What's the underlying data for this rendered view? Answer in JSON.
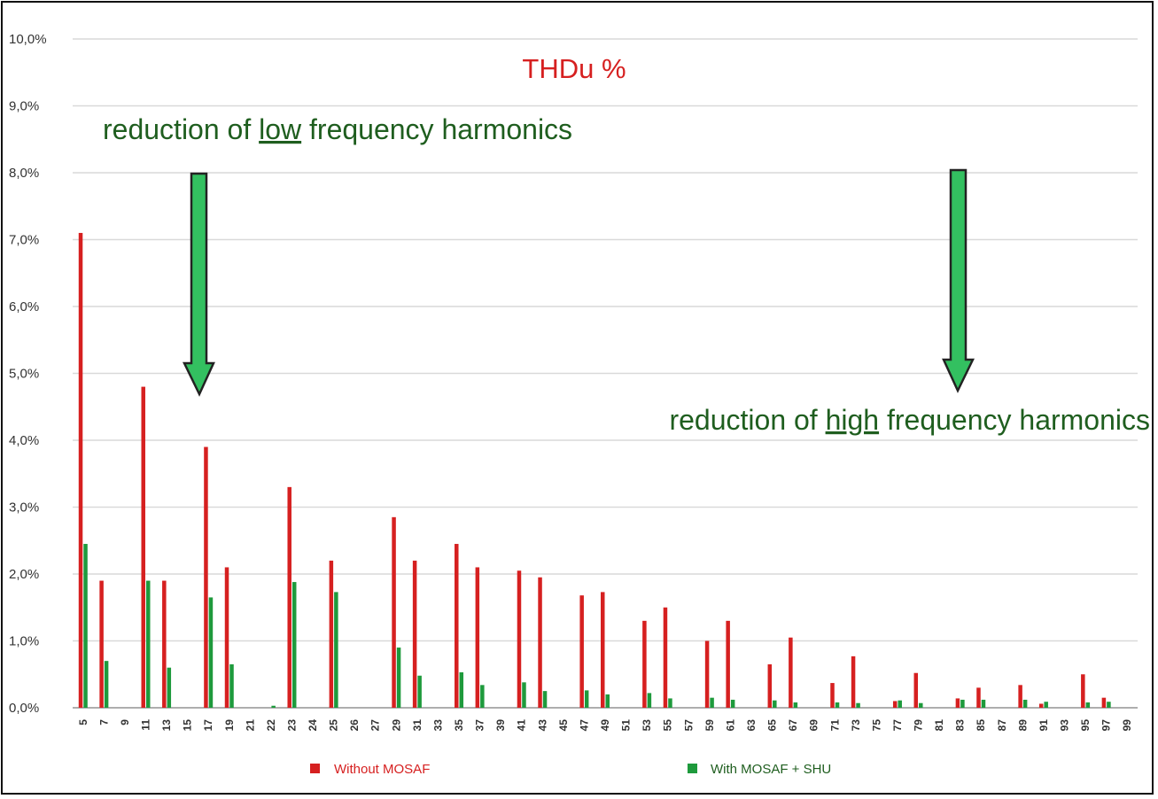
{
  "chart_data": {
    "type": "bar",
    "title": "THDu %",
    "xlabel": "",
    "ylabel": "",
    "ylim": [
      0,
      10
    ],
    "yticks": [
      "0,0%",
      "1,0%",
      "2,0%",
      "3,0%",
      "4,0%",
      "5,0%",
      "6,0%",
      "7,0%",
      "8,0%",
      "9,0%",
      "10,0%"
    ],
    "categories": [
      "5",
      "7",
      "9",
      "11",
      "13",
      "15",
      "17",
      "19",
      "21",
      "22",
      "23",
      "24",
      "25",
      "26",
      "27",
      "29",
      "31",
      "33",
      "35",
      "37",
      "39",
      "41",
      "43",
      "45",
      "47",
      "49",
      "51",
      "53",
      "55",
      "57",
      "59",
      "61",
      "63",
      "65",
      "67",
      "69",
      "71",
      "73",
      "75",
      "77",
      "79",
      "81",
      "83",
      "85",
      "87",
      "89",
      "91",
      "93",
      "95",
      "97",
      "99"
    ],
    "series": [
      {
        "name": "Without MOSAF",
        "color": "#d62020",
        "values": [
          7.1,
          1.9,
          0,
          4.8,
          1.9,
          0,
          3.9,
          2.1,
          0,
          0,
          3.3,
          0,
          2.2,
          0,
          0,
          2.85,
          2.2,
          0,
          2.45,
          2.1,
          0,
          2.05,
          1.95,
          0,
          1.68,
          1.73,
          0,
          1.3,
          1.5,
          0,
          1.0,
          1.3,
          0,
          0.65,
          1.05,
          0,
          0.37,
          0.77,
          0,
          0.1,
          0.52,
          0,
          0.14,
          0.3,
          0,
          0.34,
          0.06,
          0,
          0.5,
          0.15,
          0
        ]
      },
      {
        "name": "With MOSAF + SHU",
        "color": "#1e9a3c",
        "values": [
          2.45,
          0.7,
          0,
          1.9,
          0.6,
          0,
          1.65,
          0.65,
          0,
          0.03,
          1.88,
          0,
          1.73,
          0,
          0,
          0.9,
          0.48,
          0,
          0.53,
          0.34,
          0,
          0.38,
          0.25,
          0,
          0.26,
          0.2,
          0,
          0.22,
          0.14,
          0,
          0.15,
          0.12,
          0,
          0.11,
          0.08,
          0,
          0.08,
          0.07,
          0,
          0.11,
          0.07,
          0,
          0.12,
          0.12,
          0,
          0.12,
          0.09,
          0,
          0.08,
          0.09,
          0
        ]
      }
    ],
    "grid": true,
    "legend": "bottom",
    "annotations": [
      {
        "prefix": "reduction of ",
        "emph": "low",
        "suffix": " frequency harmonics"
      },
      {
        "prefix": "reduction of ",
        "emph": "high",
        "suffix": " frequency harmonics"
      }
    ]
  },
  "colors": {
    "arrow": "#33c060",
    "grid": "#d9d9d9",
    "title": "#d62020",
    "annotation": "#1f5e1f"
  }
}
